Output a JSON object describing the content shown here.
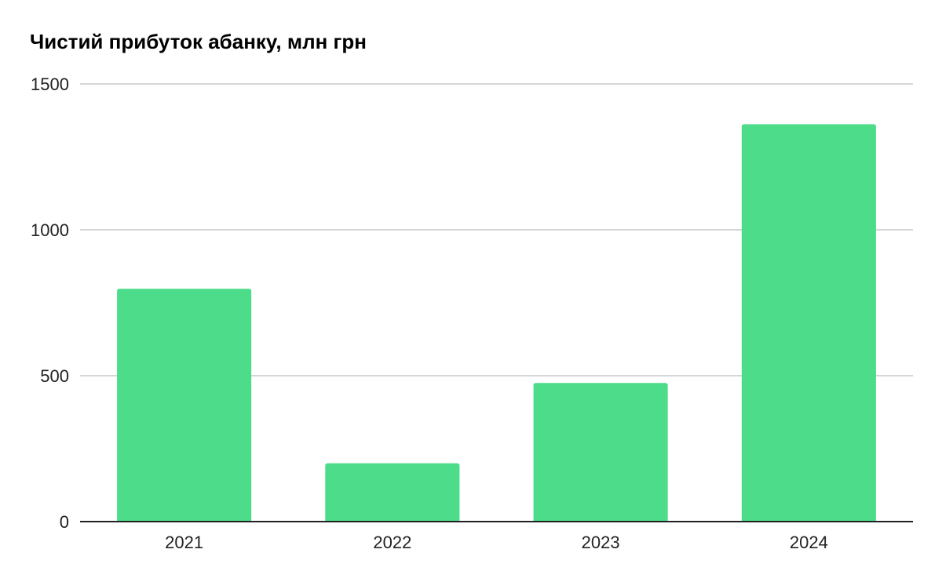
{
  "chart_data": {
    "type": "bar",
    "title": "Чистий прибуток абанку, млн грн",
    "xlabel": "",
    "ylabel": "",
    "categories": [
      "2021",
      "2022",
      "2023",
      "2024"
    ],
    "values": [
      798,
      200,
      475,
      1362
    ],
    "ylim": [
      0,
      1500
    ],
    "yticks": [
      "0",
      "500",
      "1000",
      "1500"
    ],
    "grid": true,
    "legend": "none",
    "bar_color": "#4ddd8a",
    "grid_color": "#c8c8c8",
    "axis_color": "#222222"
  }
}
